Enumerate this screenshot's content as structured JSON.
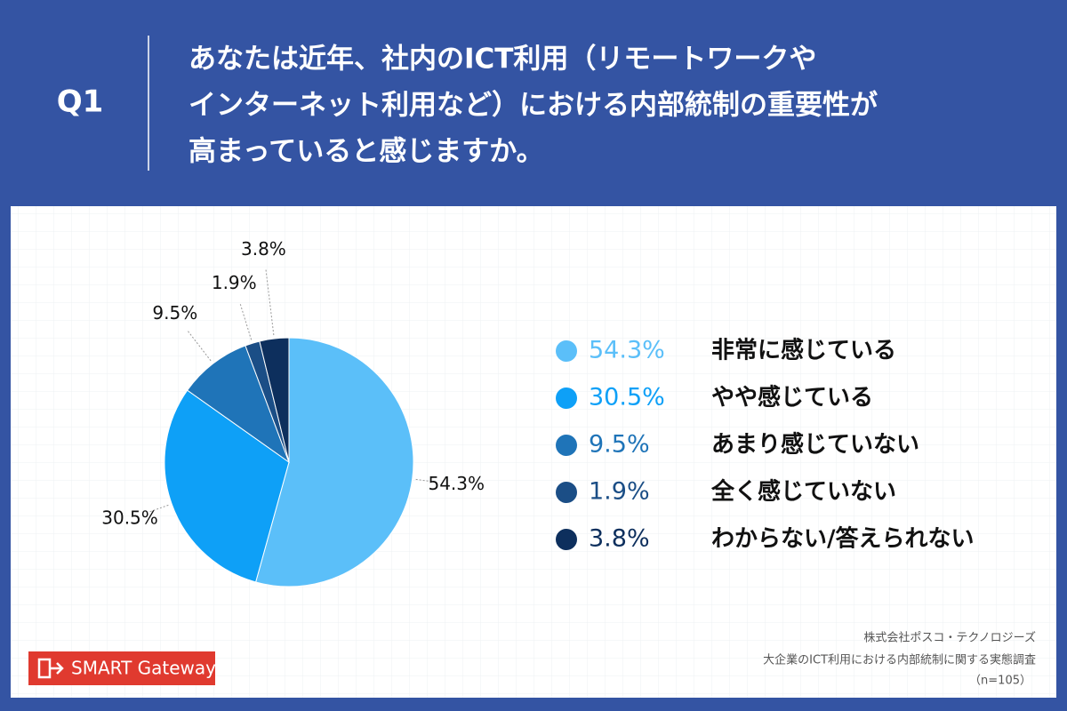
{
  "header": {
    "number": "Q1",
    "question_lines": [
      "あなたは近年、社内のICT利用（リモートワークや",
      "インターネット利用など）における内部統制の重要性が",
      "高まっていると感じますか。"
    ]
  },
  "chart_data": {
    "type": "pie",
    "categories": [
      "非常に感じている",
      "やや感じている",
      "あまり感じていない",
      "全く感じていない",
      "わからない/答えられない"
    ],
    "values": [
      54.3,
      30.5,
      9.5,
      1.9,
      3.8
    ],
    "value_labels": [
      "54.3%",
      "30.5%",
      "9.5%",
      "1.9%",
      "3.8%"
    ],
    "colors": [
      "#5bbff9",
      "#0ea0f7",
      "#1f74b8",
      "#1b4e86",
      "#0d2f5d"
    ]
  },
  "source": {
    "lines": [
      "株式会社ポスコ・テクノロジーズ",
      "大企業のICT利用における内部統制に関する実態調査",
      "（n=105）"
    ]
  },
  "logo": "SMART Gateway"
}
